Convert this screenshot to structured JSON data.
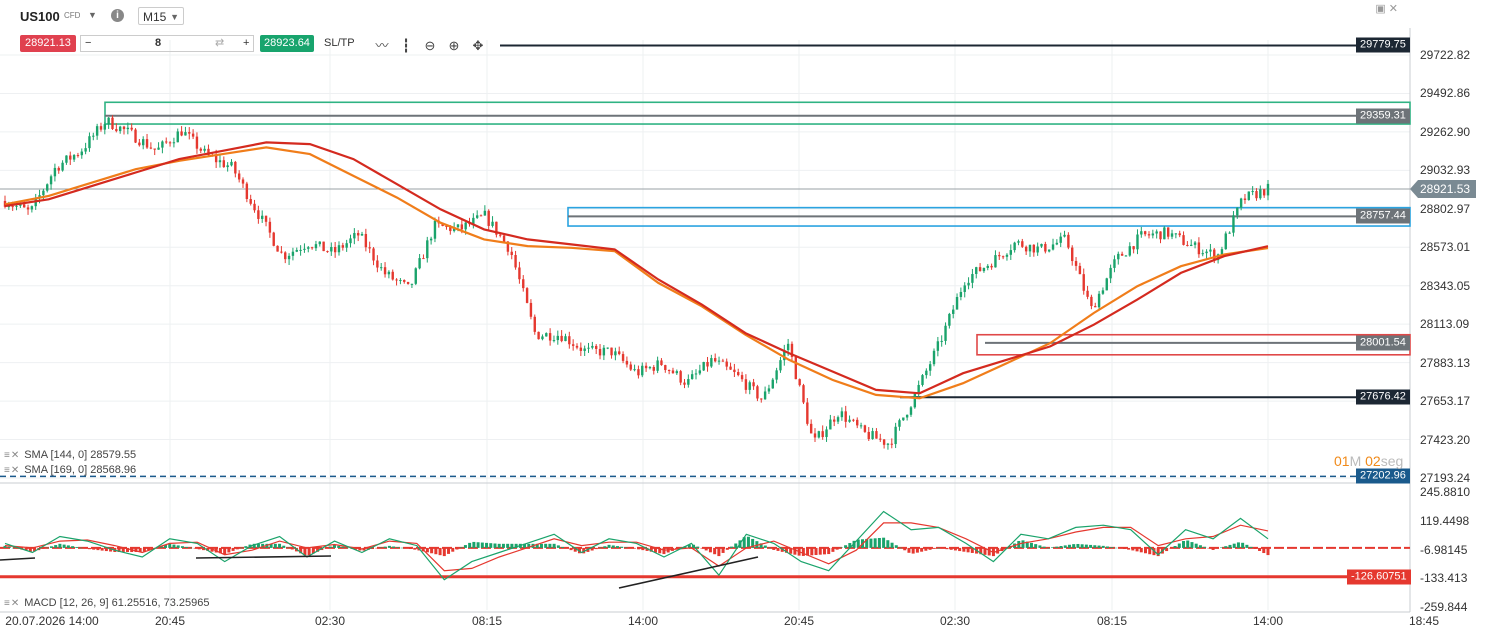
{
  "header": {
    "symbol": "US100",
    "instrument_type": "CFD",
    "timeframe": "M15",
    "info_label": "i"
  },
  "trade_bar": {
    "sell_price": "28921.13",
    "minus": "−",
    "quantity": "8",
    "plus": "+",
    "buy_price": "28923.64",
    "sltp_label": "SL/TP"
  },
  "toolbar_icons": [
    "line-chart-icon",
    "candle-chart-icon",
    "zoom-out-icon",
    "zoom-in-icon",
    "move-icon"
  ],
  "price_axis": {
    "ticks": [
      "29722.82",
      "29492.86",
      "29262.90",
      "29032.93",
      "28802.97",
      "28573.01",
      "28343.05",
      "28113.09",
      "27883.13",
      "27653.17",
      "27423.20",
      "27193.24"
    ],
    "current_price": "28921.53",
    "levels": [
      {
        "value": "29779.75",
        "color": "#1c2733"
      },
      {
        "value": "29359.31",
        "color": "#6d7378"
      },
      {
        "value": "28757.44",
        "color": "#6d7378"
      },
      {
        "value": "28001.54",
        "color": "#6d7378"
      },
      {
        "value": "27676.42",
        "color": "#1c2733"
      },
      {
        "value": "27202.96",
        "color": "#1a5a8c"
      }
    ]
  },
  "macd_axis": {
    "ticks": [
      "245.8810",
      "119.4498",
      "-6.98145",
      "-133.413",
      "-259.844"
    ],
    "level": "-126.60751",
    "level_color": "#e5382f"
  },
  "time_axis": [
    "20.07.2026 14:00",
    "20:45",
    "02:30",
    "08:15",
    "14:00",
    "20:45",
    "02:30",
    "08:15",
    "14:00",
    "18:45"
  ],
  "legends": {
    "sma1": "SMA [144, 0] 28579.55",
    "sma2": "SMA [169, 0] 28568.96",
    "macd": "MACD [12, 26, 9] 61.25516, 73.25965"
  },
  "countdown": {
    "minutes": "01",
    "m": "M",
    "seconds": "02",
    "s": "seg"
  },
  "colors": {
    "bull": "#1aa36b",
    "bear": "#e5382f",
    "sma144": "#d42a1f",
    "sma169": "#f07d1a",
    "zone_green": "#2fb383",
    "zone_blue": "#2aa3e0",
    "zone_red": "#e04848",
    "macd_line": "#1aa36b",
    "signal_line": "#e5382f"
  },
  "chart_data": {
    "type": "candlestick",
    "symbol": "US100",
    "timeframe": "M15",
    "x": [
      "20.07.2026 14:00",
      "20:45",
      "02:30",
      "08:15",
      "14:00",
      "20:45",
      "02:30",
      "08:15",
      "14:00"
    ],
    "close_path": [
      28850,
      28780,
      29050,
      29150,
      29330,
      29250,
      29150,
      29270,
      29120,
      29050,
      28780,
      28520,
      28600,
      28540,
      28650,
      28420,
      28320,
      28700,
      28680,
      28760,
      28560,
      28050,
      28050,
      27950,
      27950,
      27820,
      27880,
      27760,
      27900,
      27800,
      27660,
      28000,
      27400,
      27590,
      27460,
      27400,
      27680,
      28000,
      28380,
      28480,
      28600,
      28560,
      28620,
      28200,
      28500,
      28640,
      28660,
      28580,
      28520,
      28860,
      28921.53
    ],
    "sma144_path": [
      28820,
      28860,
      28940,
      29020,
      29100,
      29150,
      29200,
      29190,
      29100,
      28950,
      28800,
      28680,
      28620,
      28590,
      28560,
      28380,
      28230,
      28060,
      27940,
      27830,
      27720,
      27700,
      27820,
      27900,
      27980,
      28110,
      28260,
      28420,
      28520,
      28579.55
    ],
    "sma169_path": [
      28830,
      28880,
      28960,
      29040,
      29090,
      29130,
      29170,
      29130,
      29000,
      28870,
      28720,
      28620,
      28580,
      28570,
      28550,
      28360,
      28220,
      28050,
      27900,
      27780,
      27690,
      27670,
      27760,
      27880,
      28000,
      28180,
      28340,
      28460,
      28530,
      28568.96
    ],
    "price_range": [
      27193.24,
      29722.82
    ],
    "horizontal_levels": [
      29779.75,
      29359.31,
      28757.44,
      28001.54,
      27676.42,
      27202.96
    ],
    "zones": [
      {
        "color": "green",
        "top": 29440,
        "bottom": 29310
      },
      {
        "color": "blue",
        "top": 28810,
        "bottom": 28700
      },
      {
        "color": "red",
        "top": 28050,
        "bottom": 27930
      }
    ],
    "current_price": 28921.53,
    "sma144": 28579.55,
    "sma169": 28568.96,
    "macd": {
      "params": "12, 26, 9",
      "macd": 61.25516,
      "signal": 73.25965,
      "range": [
        -259.844,
        245.881
      ],
      "level": -126.60751,
      "macd_path": [
        20,
        -20,
        50,
        30,
        -10,
        -40,
        40,
        20,
        -60,
        10,
        50,
        -40,
        30,
        -20,
        40,
        10,
        -140,
        -60,
        -20,
        20,
        60,
        -20,
        40,
        20,
        -40,
        20,
        -120,
        60,
        20,
        -60,
        -100,
        30,
        160,
        80,
        90,
        20,
        -60,
        60,
        40,
        90,
        100,
        80,
        -30,
        80,
        40,
        130,
        40
      ],
      "signal_path": [
        10,
        0,
        30,
        35,
        10,
        -20,
        20,
        25,
        -30,
        -10,
        30,
        0,
        15,
        -5,
        30,
        20,
        -100,
        -90,
        -40,
        0,
        40,
        10,
        25,
        25,
        -10,
        0,
        -80,
        0,
        30,
        -20,
        -70,
        -10,
        110,
        110,
        90,
        40,
        -20,
        20,
        40,
        70,
        90,
        90,
        10,
        40,
        50,
        100,
        75
      ]
    }
  }
}
